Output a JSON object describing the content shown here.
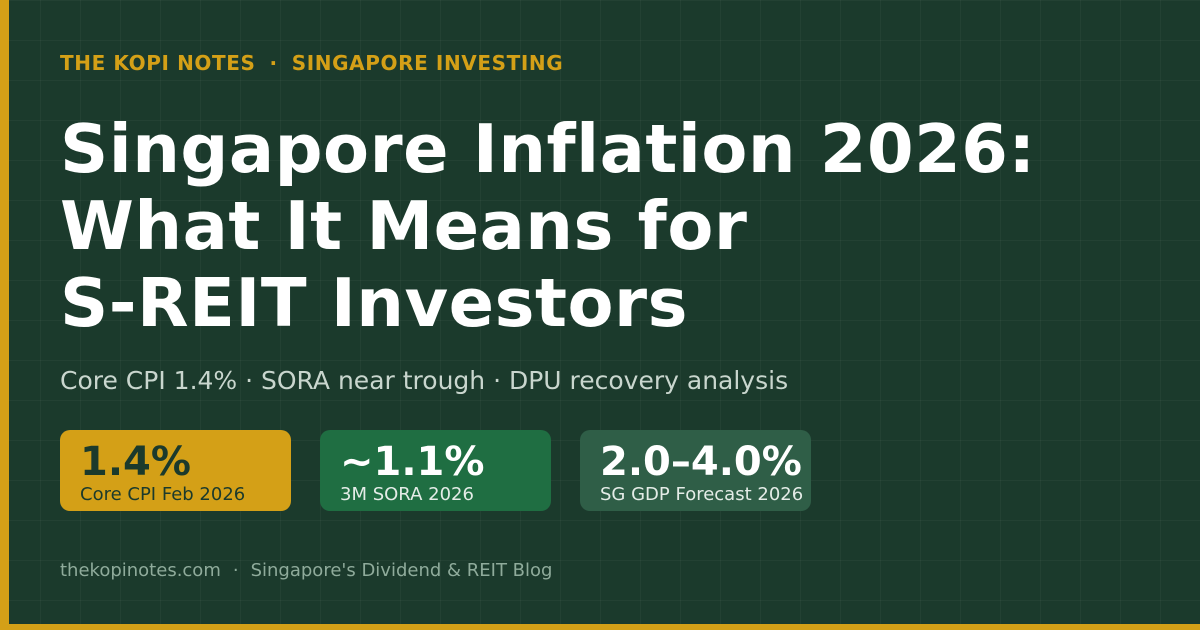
{
  "brand": {
    "name": "THE KOPI NOTES",
    "separator": "·",
    "section": "SINGAPORE INVESTING"
  },
  "headline": {
    "line1": "Singapore Inflation 2026:",
    "line2": "What It Means for",
    "line3": "S-REIT Investors"
  },
  "subtitle": "Core CPI 1.4% · SORA near trough · DPU recovery analysis",
  "stats": [
    {
      "value": "1.4%",
      "label": "Core CPI Feb 2026",
      "color": "#d4a017"
    },
    {
      "value": "~1.1%",
      "label": "3M SORA 2026",
      "color": "#1f6e42"
    },
    {
      "value": "2.0–4.0%",
      "label": "SG GDP Forecast 2026",
      "color": "#2f5e47"
    }
  ],
  "footer": {
    "site": "thekopinotes.com",
    "separator": "·",
    "tagline": "Singapore's Dividend & REIT Blog"
  },
  "colors": {
    "background": "#1b3a2c",
    "accent": "#d4a017",
    "text": "#ffffff"
  }
}
